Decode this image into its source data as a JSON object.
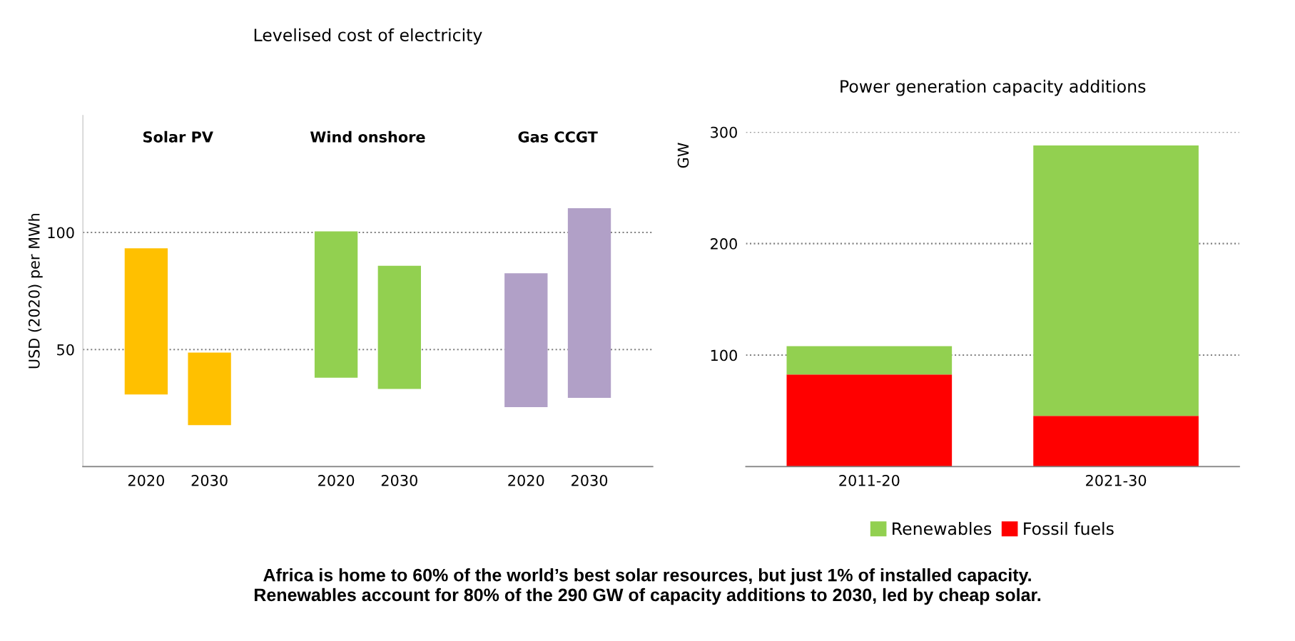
{
  "chart_data": [
    {
      "type": "bar",
      "title": "Levelised cost of electricity",
      "ylabel": "USD (2020) per MWh",
      "categories": [
        "2020",
        "2030",
        "2020",
        "2030",
        "2020",
        "2030"
      ],
      "ylim": [
        0,
        150
      ],
      "yticks": [
        50,
        100
      ],
      "grid": "y",
      "line_style": "dotted",
      "series": [
        {
          "color": "#ffc000",
          "base": [
            30.8,
            17.7,
            null,
            null,
            null,
            null
          ],
          "values": [
            62.4,
            31.0,
            null,
            null,
            null,
            null
          ]
        },
        {
          "color": "#92d050",
          "base": [
            null,
            null,
            38.0,
            33.2,
            null,
            null
          ],
          "values": [
            null,
            null,
            62.5,
            52.6,
            null,
            null
          ]
        },
        {
          "color": "#b1a0c7",
          "base": [
            null,
            null,
            null,
            null,
            25.4,
            29.4
          ],
          "values": [
            null,
            null,
            null,
            null,
            57.2,
            81.0
          ]
        }
      ],
      "annotations": [
        "Solar PV",
        "Wind onshore",
        "Gas CCGT"
      ]
    },
    {
      "type": "bar",
      "title": "Power generation capacity additions",
      "ylabel": "GW",
      "categories": [
        "2011-20",
        "2021-30"
      ],
      "stacked": true,
      "ylim": [
        0,
        300
      ],
      "yticks": [
        100,
        200,
        300
      ],
      "grid": "y",
      "line_style": "dotted",
      "legend": "bottom",
      "series": [
        {
          "name": "Fossil fuels",
          "color": "#ff0000",
          "values": [
            82.6,
            45.5
          ]
        },
        {
          "name": "Renewables",
          "color": "#92d050",
          "values": [
            25.5,
            242.5
          ]
        }
      ],
      "annotations": [
        "Africa is home to 60% of the world’s best solar resources, but just 1% of installed capacity.\nRenewables account for 80% of the 290 GW of capacity additions to 2030, led by cheap solar."
      ]
    }
  ]
}
